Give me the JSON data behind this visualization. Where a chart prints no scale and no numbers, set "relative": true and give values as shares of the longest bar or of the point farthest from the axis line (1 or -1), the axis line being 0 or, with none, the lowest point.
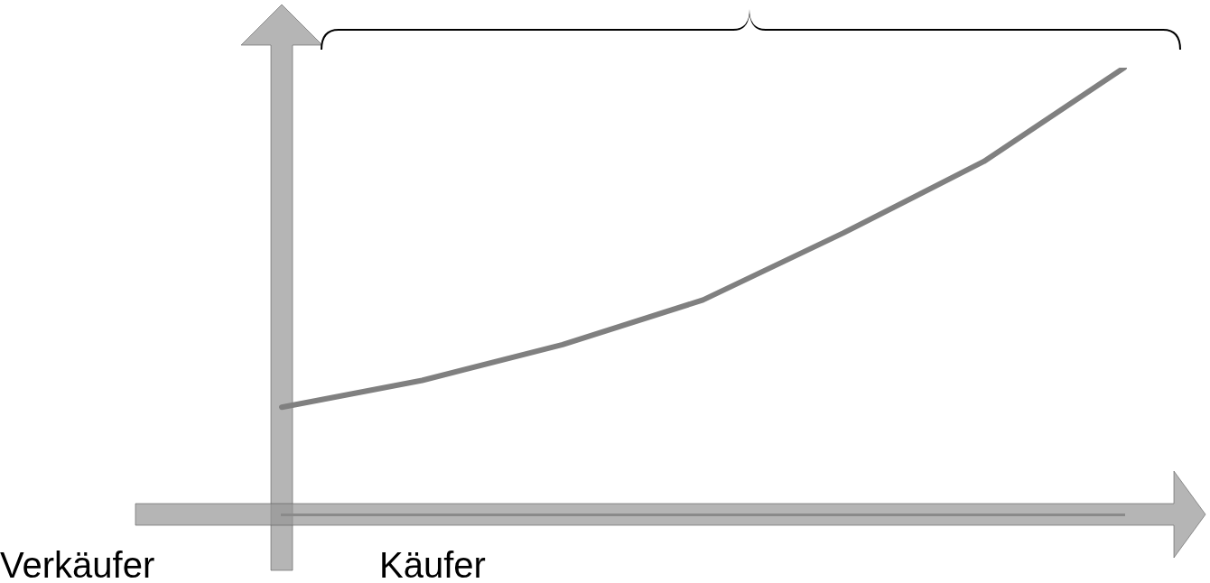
{
  "chart_data": {
    "type": "line",
    "relative": true,
    "xlabel": "Käufer",
    "annotations": [
      "Verkäufer"
    ],
    "categories": [
      null,
      null,
      null,
      null,
      null,
      null,
      null
    ],
    "series": [
      {
        "color": "#808080",
        "values": [
          0.24,
          0.3,
          0.38,
          0.48,
          0.63,
          0.79,
          1
        ]
      }
    ],
    "legend": false,
    "marker": "none",
    "line_style": "solid"
  }
}
